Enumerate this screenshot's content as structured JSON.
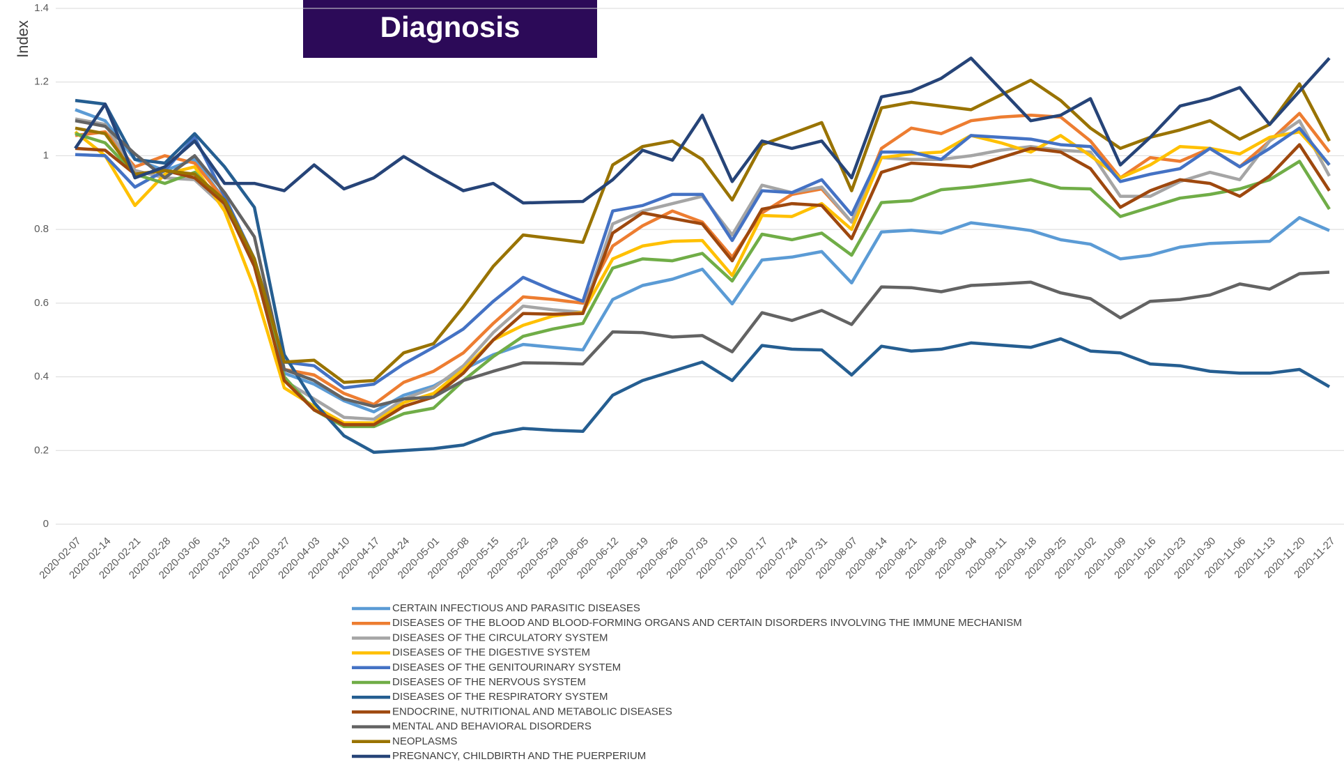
{
  "chart_data": {
    "type": "line",
    "title": "Diagnosis",
    "ylabel": "Index",
    "ylim": [
      0,
      1.4
    ],
    "yticks": [
      0,
      0.2,
      0.4,
      0.6,
      0.8,
      1,
      1.2,
      1.4
    ],
    "grid": true,
    "categories": [
      "2020-02-07",
      "2020-02-14",
      "2020-02-21",
      "2020-02-28",
      "2020-03-06",
      "2020-03-13",
      "2020-03-20",
      "2020-03-27",
      "2020-04-03",
      "2020-04-10",
      "2020-04-17",
      "2020-04-24",
      "2020-05-01",
      "2020-05-08",
      "2020-05-15",
      "2020-05-22",
      "2020-05-29",
      "2020-06-05",
      "2020-06-12",
      "2020-06-19",
      "2020-06-26",
      "2020-07-03",
      "2020-07-10",
      "2020-07-17",
      "2020-07-24",
      "2020-07-31",
      "2020-08-07",
      "2020-08-14",
      "2020-08-21",
      "2020-08-28",
      "2020-09-04",
      "2020-09-11",
      "2020-09-18",
      "2020-09-25",
      "2020-10-02",
      "2020-10-09",
      "2020-10-16",
      "2020-10-23",
      "2020-10-30",
      "2020-11-06",
      "2020-11-13",
      "2020-11-20",
      "2020-11-27"
    ],
    "series": [
      {
        "name": "CERTAIN INFECTIOUS AND PARASITIC DISEASES",
        "color": "#5B9BD5",
        "values": [
          1.125,
          1.095,
          0.99,
          0.96,
          0.99,
          0.88,
          0.72,
          0.41,
          0.38,
          0.335,
          0.305,
          0.35,
          0.375,
          0.42,
          0.46,
          0.488,
          0.48,
          0.473,
          0.61,
          0.648,
          0.665,
          0.692,
          0.598,
          0.717,
          0.725,
          0.74,
          0.655,
          0.793,
          0.798,
          0.79,
          0.818,
          0.808,
          0.797,
          0.772,
          0.76,
          0.72,
          0.73,
          0.752,
          0.762,
          0.765,
          0.768,
          0.832,
          0.797
        ]
      },
      {
        "name": "DISEASES OF THE BLOOD AND BLOOD-FORMING ORGANS AND CERTAIN DISORDERS INVOLVING THE IMMUNE MECHANISM",
        "color": "#ED7D31",
        "values": [
          1.055,
          1.065,
          0.97,
          1.0,
          0.98,
          0.88,
          0.71,
          0.42,
          0.405,
          0.355,
          0.325,
          0.385,
          0.415,
          0.465,
          0.545,
          0.617,
          0.61,
          0.6,
          0.755,
          0.81,
          0.85,
          0.82,
          0.725,
          0.845,
          0.895,
          0.91,
          0.82,
          1.02,
          1.075,
          1.06,
          1.095,
          1.105,
          1.11,
          1.105,
          1.04,
          0.94,
          0.995,
          0.985,
          1.02,
          0.97,
          1.04,
          1.115,
          1.01
        ]
      },
      {
        "name": "DISEASES OF THE CIRCULATORY SYSTEM",
        "color": "#A5A5A5",
        "values": [
          1.1,
          1.085,
          0.96,
          0.94,
          0.935,
          0.86,
          0.72,
          0.39,
          0.34,
          0.29,
          0.285,
          0.34,
          0.37,
          0.43,
          0.52,
          0.592,
          0.582,
          0.575,
          0.815,
          0.85,
          0.87,
          0.89,
          0.785,
          0.92,
          0.9,
          0.915,
          0.82,
          0.995,
          0.99,
          0.99,
          1.0,
          1.015,
          1.025,
          1.015,
          1.01,
          0.89,
          0.89,
          0.93,
          0.955,
          0.935,
          1.04,
          1.095,
          0.945
        ]
      },
      {
        "name": "DISEASES OF THE DIGESTIVE SYSTEM",
        "color": "#FFC000",
        "values": [
          1.065,
          1.0,
          0.865,
          0.95,
          0.97,
          0.85,
          0.64,
          0.37,
          0.32,
          0.275,
          0.275,
          0.33,
          0.355,
          0.42,
          0.5,
          0.54,
          0.565,
          0.575,
          0.72,
          0.755,
          0.768,
          0.77,
          0.675,
          0.838,
          0.835,
          0.87,
          0.8,
          0.995,
          1.005,
          1.01,
          1.055,
          1.035,
          1.01,
          1.055,
          1.0,
          0.94,
          0.975,
          1.025,
          1.02,
          1.005,
          1.05,
          1.065,
          0.975
        ]
      },
      {
        "name": "DISEASES OF THE GENITOURINARY SYSTEM",
        "color": "#4472C4",
        "values": [
          1.003,
          1.0,
          0.915,
          0.96,
          1.05,
          0.89,
          0.72,
          0.44,
          0.43,
          0.37,
          0.38,
          0.435,
          0.48,
          0.53,
          0.605,
          0.67,
          0.635,
          0.605,
          0.85,
          0.865,
          0.895,
          0.895,
          0.77,
          0.905,
          0.9,
          0.935,
          0.84,
          1.01,
          1.01,
          0.99,
          1.055,
          1.05,
          1.045,
          1.03,
          1.025,
          0.93,
          0.95,
          0.965,
          1.02,
          0.97,
          1.02,
          1.075,
          0.975
        ]
      },
      {
        "name": "DISEASES OF THE NERVOUS SYSTEM",
        "color": "#70AD47",
        "values": [
          1.06,
          1.035,
          0.95,
          0.925,
          0.955,
          0.87,
          0.72,
          0.4,
          0.31,
          0.265,
          0.265,
          0.3,
          0.315,
          0.39,
          0.455,
          0.51,
          0.53,
          0.545,
          0.695,
          0.72,
          0.715,
          0.735,
          0.66,
          0.787,
          0.772,
          0.79,
          0.73,
          0.873,
          0.878,
          0.908,
          0.915,
          0.925,
          0.935,
          0.912,
          0.91,
          0.835,
          0.86,
          0.885,
          0.895,
          0.91,
          0.935,
          0.985,
          0.855
        ]
      },
      {
        "name": "DISEASES OF THE RESPIRATORY SYSTEM",
        "color": "#255E91",
        "values": [
          1.15,
          1.14,
          0.99,
          0.98,
          1.06,
          0.97,
          0.86,
          0.46,
          0.33,
          0.24,
          0.195,
          0.2,
          0.205,
          0.215,
          0.245,
          0.26,
          0.255,
          0.252,
          0.35,
          0.39,
          0.415,
          0.44,
          0.39,
          0.485,
          0.475,
          0.473,
          0.405,
          0.483,
          0.47,
          0.475,
          0.492,
          0.486,
          0.48,
          0.503,
          0.47,
          0.465,
          0.435,
          0.43,
          0.415,
          0.41,
          0.41,
          0.42,
          0.373
        ]
      },
      {
        "name": "ENDOCRINE, NUTRITIONAL AND METABOLIC DISEASES",
        "color": "#9E480E",
        "values": [
          1.02,
          1.015,
          0.95,
          0.96,
          0.94,
          0.87,
          0.7,
          0.39,
          0.31,
          0.27,
          0.27,
          0.32,
          0.345,
          0.41,
          0.5,
          0.572,
          0.57,
          0.572,
          0.79,
          0.845,
          0.83,
          0.815,
          0.715,
          0.855,
          0.87,
          0.865,
          0.775,
          0.955,
          0.98,
          0.975,
          0.97,
          0.995,
          1.02,
          1.01,
          0.965,
          0.86,
          0.905,
          0.935,
          0.925,
          0.89,
          0.945,
          1.03,
          0.905
        ]
      },
      {
        "name": "MENTAL AND BEHAVIORAL DISORDERS",
        "color": "#636363",
        "values": [
          1.095,
          1.08,
          1.005,
          0.94,
          1.0,
          0.9,
          0.78,
          0.42,
          0.39,
          0.34,
          0.32,
          0.34,
          0.345,
          0.39,
          0.415,
          0.438,
          0.437,
          0.435,
          0.522,
          0.52,
          0.508,
          0.512,
          0.468,
          0.574,
          0.553,
          0.58,
          0.542,
          0.644,
          0.642,
          0.631,
          0.648,
          0.652,
          0.657,
          0.628,
          0.612,
          0.56,
          0.605,
          0.61,
          0.622,
          0.652,
          0.638,
          0.68,
          0.684
        ]
      },
      {
        "name": "NEOPLASMS",
        "color": "#997300",
        "values": [
          1.075,
          1.06,
          0.95,
          0.96,
          0.95,
          0.88,
          0.72,
          0.44,
          0.445,
          0.385,
          0.39,
          0.465,
          0.49,
          0.59,
          0.7,
          0.785,
          0.775,
          0.765,
          0.975,
          1.025,
          1.04,
          0.99,
          0.88,
          1.03,
          1.06,
          1.09,
          0.905,
          1.13,
          1.145,
          1.135,
          1.125,
          1.165,
          1.205,
          1.15,
          1.075,
          1.02,
          1.05,
          1.07,
          1.095,
          1.045,
          1.085,
          1.195,
          1.04
        ]
      },
      {
        "name": "PREGNANCY, CHILDBIRTH AND THE PUERPERIUM",
        "color": "#264478",
        "values": [
          1.02,
          1.14,
          0.94,
          0.97,
          1.04,
          0.925,
          0.925,
          0.905,
          0.975,
          0.91,
          0.94,
          0.998,
          0.95,
          0.905,
          0.925,
          0.872,
          0.874,
          0.876,
          0.935,
          1.015,
          0.988,
          1.11,
          0.93,
          1.04,
          1.02,
          1.04,
          0.94,
          1.16,
          1.175,
          1.21,
          1.265,
          1.18,
          1.095,
          1.11,
          1.155,
          0.975,
          1.05,
          1.135,
          1.155,
          1.185,
          1.085,
          1.175,
          1.265
        ]
      }
    ]
  }
}
